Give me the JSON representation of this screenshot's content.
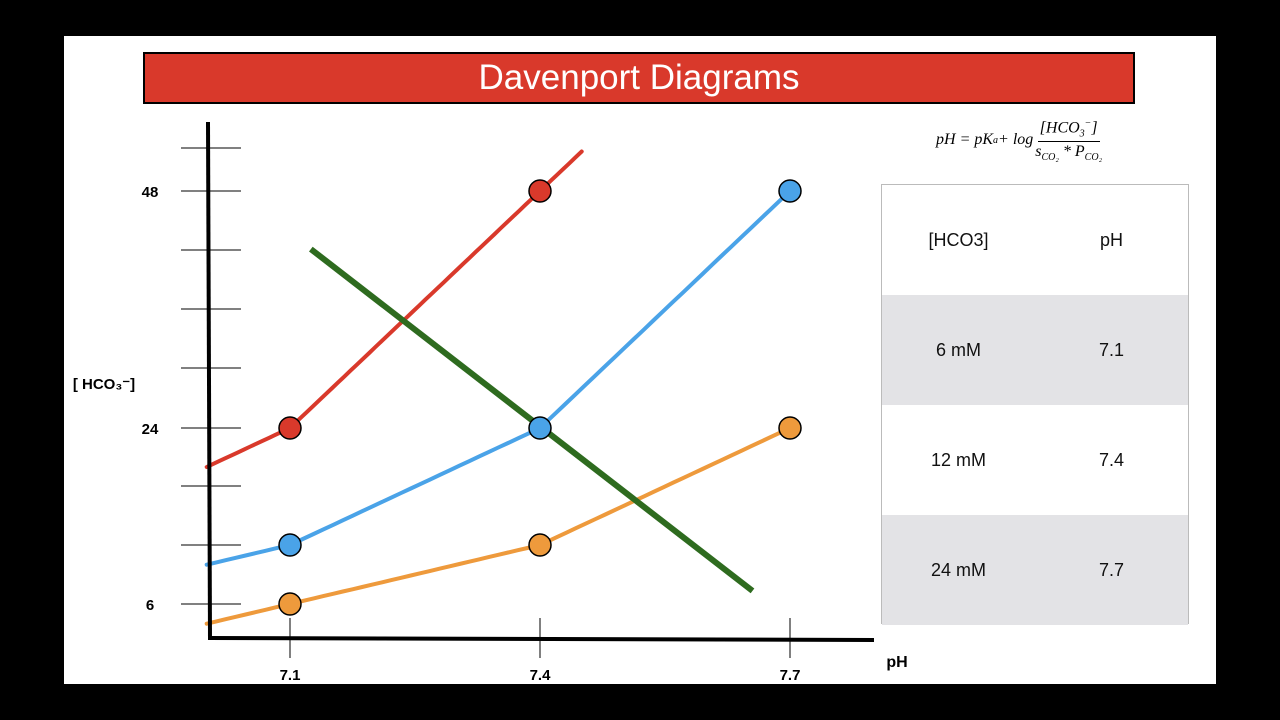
{
  "title": "Davenport Diagrams",
  "equation": {
    "lhs": "pH",
    "rhs_prefix": "= pK",
    "rhs_sub": "a",
    "rhs_log": " + log",
    "numerator": "[HCO",
    "numerator_sub": "3",
    "numerator_sup": "−",
    "numerator_close": "]",
    "denominator_s": "s",
    "denominator_s_sub": "CO₂",
    "denominator_times": " * P",
    "denominator_p_sub": "CO₂"
  },
  "table": {
    "header": [
      "[HCO3]",
      "pH"
    ],
    "rows": [
      [
        "6 mM",
        "7.1"
      ],
      [
        "12 mM",
        "7.4"
      ],
      [
        "24 mM",
        "7.7"
      ]
    ]
  },
  "colors": {
    "red_curve": "#d9392b",
    "blue_curve": "#4aa3e8",
    "orange_curve": "#ee9a3c",
    "green_line": "#2e6b1f",
    "title_bar": "#d9392b"
  },
  "chart_data": {
    "type": "line",
    "xlabel": "pH",
    "ylabel": "[ HCO₃⁻]",
    "x_ticks": [
      "7.1",
      "7.4",
      "7.7"
    ],
    "y_tick_labels": [
      "6",
      "24",
      "48"
    ],
    "series": [
      {
        "name": "",
        "color": "#d9392b",
        "points": [
          [
            7.1,
            24
          ],
          [
            7.4,
            48
          ]
        ],
        "curve_extent": [
          7.0,
          7.45
        ]
      },
      {
        "name": "",
        "color": "#4aa3e8",
        "points": [
          [
            7.1,
            12
          ],
          [
            7.4,
            24
          ],
          [
            7.7,
            48
          ]
        ],
        "curve_extent": [
          7.0,
          7.7
        ]
      },
      {
        "name": "",
        "color": "#ee9a3c",
        "points": [
          [
            7.1,
            6
          ],
          [
            7.4,
            12
          ],
          [
            7.7,
            24
          ]
        ],
        "curve_extent": [
          7.0,
          7.7
        ]
      }
    ],
    "buffer_line": {
      "color": "#2e6b1f",
      "from": [
        7.125,
        40.5
      ],
      "to": [
        7.655,
        7.0
      ]
    }
  }
}
